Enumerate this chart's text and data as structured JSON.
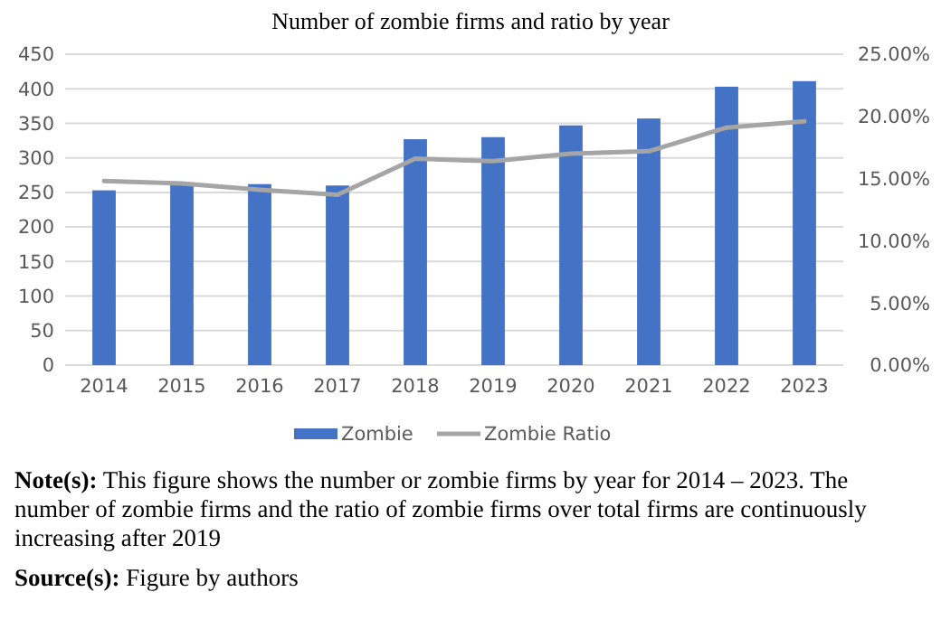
{
  "chart_data": {
    "type": "bar",
    "title": "Number of zombie firms and ratio by year",
    "categories": [
      "2014",
      "2015",
      "2016",
      "2017",
      "2018",
      "2019",
      "2020",
      "2021",
      "2022",
      "2023"
    ],
    "series": [
      {
        "name": "Zombie",
        "color": "#4472c4",
        "values": [
          253,
          261,
          262,
          260,
          327,
          330,
          347,
          357,
          403,
          411
        ]
      },
      {
        "name": "Zombie Ratio",
        "type": "line",
        "axis": "y2",
        "color": "#a5a5a5",
        "values": [
          14.8,
          14.6,
          14.1,
          13.7,
          16.6,
          16.4,
          17.0,
          17.2,
          19.1,
          19.6
        ]
      }
    ],
    "ylim": [
      0,
      450
    ],
    "yticks": [
      0,
      50,
      100,
      150,
      200,
      250,
      300,
      350,
      400,
      450
    ],
    "y2lim": [
      0,
      25
    ],
    "y2ticks": [
      {
        "value": 0,
        "label": "0.00%"
      },
      {
        "value": 5,
        "label": "5.00%"
      },
      {
        "value": 10,
        "label": "10.00%"
      },
      {
        "value": 15,
        "label": "15.00%"
      },
      {
        "value": 20,
        "label": "20.00%"
      },
      {
        "value": 25,
        "label": "25.00%"
      }
    ],
    "grid": "y",
    "legend": "bottom",
    "marker": "none",
    "annotations": [
      "Note(s): This figure shows the number or zombie firms by year for 2014 – 2023. The number of zombie firms and the ratio of zombie firms over total firms are continuously increasing after 2019",
      "Source(s): Figure by authors"
    ]
  }
}
